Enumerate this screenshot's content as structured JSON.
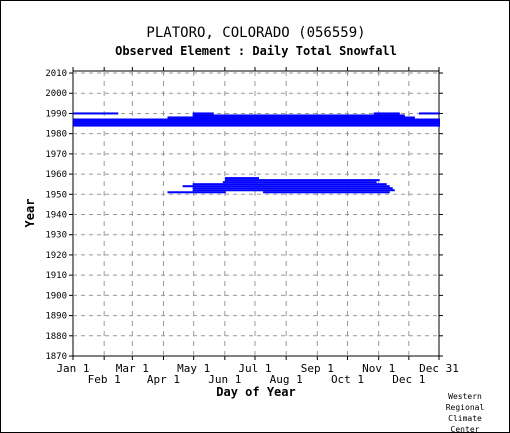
{
  "chart_data": {
    "type": "bar",
    "title": "PLATORO, COLORADO   (056559)",
    "subtitle": "Observed Element : Daily Total Snowfall",
    "xlabel": "Day of Year",
    "ylabel": "Year",
    "ylim": [
      1870,
      2011
    ],
    "xlim": [
      1,
      365
    ],
    "grid": true,
    "y_ticks": [
      1870,
      1880,
      1890,
      1900,
      1910,
      1920,
      1930,
      1940,
      1950,
      1960,
      1970,
      1980,
      1990,
      2000,
      2010
    ],
    "x_ticks_upper": [
      {
        "label": "Jan 1",
        "day": 1
      },
      {
        "label": "Mar 1",
        "day": 60
      },
      {
        "label": "May 1",
        "day": 121
      },
      {
        "label": "Jul 1",
        "day": 182
      },
      {
        "label": "Sep 1",
        "day": 244
      },
      {
        "label": "Nov 1",
        "day": 305
      },
      {
        "label": "Dec 31",
        "day": 365
      }
    ],
    "x_ticks_lower": [
      {
        "label": "Feb 1",
        "day": 32
      },
      {
        "label": "Apr 1",
        "day": 91
      },
      {
        "label": "Jun 1",
        "day": 152
      },
      {
        "label": "Aug 1",
        "day": 213
      },
      {
        "label": "Oct 1",
        "day": 274
      },
      {
        "label": "Dec 1",
        "day": 335
      }
    ],
    "series": [
      {
        "color": "#0000ff",
        "coverage": [
          {
            "year": 1951,
            "start": 95,
            "end": 152
          },
          {
            "year": 1951,
            "start": 190,
            "end": 315
          },
          {
            "year": 1952,
            "start": 120,
            "end": 320
          },
          {
            "year": 1953,
            "start": 120,
            "end": 318
          },
          {
            "year": 1954,
            "start": 110,
            "end": 315
          },
          {
            "year": 1955,
            "start": 120,
            "end": 312
          },
          {
            "year": 1956,
            "start": 150,
            "end": 302
          },
          {
            "year": 1957,
            "start": 152,
            "end": 305
          },
          {
            "year": 1958,
            "start": 152,
            "end": 185
          },
          {
            "year": 1984,
            "start": 1,
            "end": 365
          },
          {
            "year": 1985,
            "start": 1,
            "end": 365
          },
          {
            "year": 1986,
            "start": 1,
            "end": 365
          },
          {
            "year": 1987,
            "start": 1,
            "end": 365
          },
          {
            "year": 1988,
            "start": 95,
            "end": 340
          },
          {
            "year": 1989,
            "start": 120,
            "end": 330
          },
          {
            "year": 1990,
            "start": 1,
            "end": 45
          },
          {
            "year": 1990,
            "start": 120,
            "end": 140
          },
          {
            "year": 1990,
            "start": 300,
            "end": 325
          },
          {
            "year": 1990,
            "start": 345,
            "end": 365
          }
        ]
      }
    ]
  },
  "footer": {
    "credit_lines": [
      "Western",
      "Regional",
      "Climate",
      "Center"
    ]
  }
}
